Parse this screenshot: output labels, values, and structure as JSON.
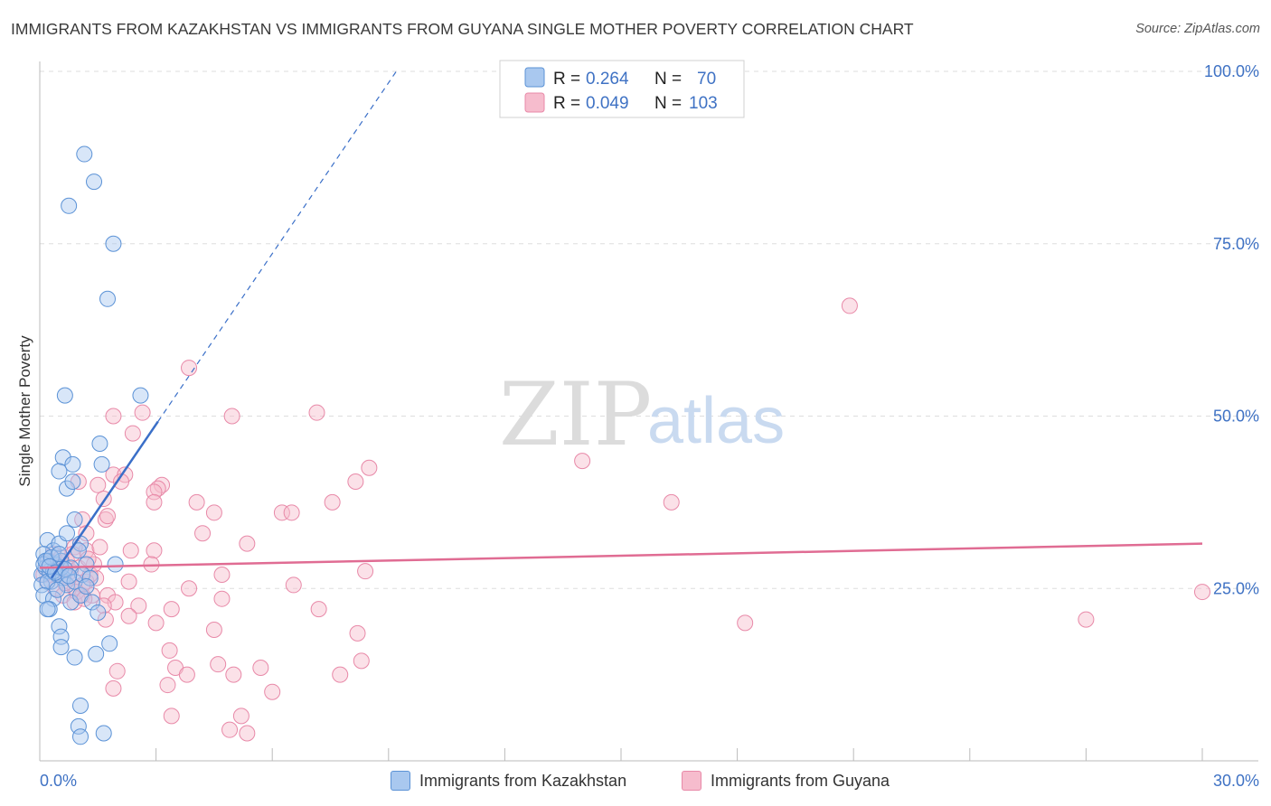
{
  "title": "IMMIGRANTS FROM KAZAKHSTAN VS IMMIGRANTS FROM GUYANA SINGLE MOTHER POVERTY CORRELATION CHART",
  "source": "Source: ZipAtlas.com",
  "watermark": {
    "zip": "ZIP",
    "atlas": "atlas"
  },
  "colors": {
    "blue_fill": "#a9c8ef",
    "blue_stroke": "#5b92d6",
    "blue_line": "#3a6fc8",
    "pink_fill": "#f6bccd",
    "pink_stroke": "#e889a8",
    "pink_line": "#e06c93",
    "tick_text": "#3f72c4"
  },
  "legend": {
    "rows": [
      {
        "r_label": "R =",
        "r_value": "0.264",
        "n_label": "N =",
        "n_value": "70"
      },
      {
        "r_label": "R =",
        "r_value": "0.049",
        "n_label": "N =",
        "n_value": "103"
      }
    ]
  },
  "bottom_legend": {
    "series1": "Immigrants from Kazakhstan",
    "series2": "Immigrants from Guyana"
  },
  "chart_data": {
    "type": "scatter",
    "title": "IMMIGRANTS FROM KAZAKHSTAN VS IMMIGRANTS FROM GUYANA SINGLE MOTHER POVERTY CORRELATION CHART",
    "xlabel": "",
    "ylabel": "Single Mother Poverty",
    "xlim": [
      0,
      30
    ],
    "ylim": [
      0,
      100
    ],
    "x_tick_labels": [
      "0.0%",
      "30.0%"
    ],
    "y_ticks": [
      25,
      50,
      75,
      100
    ],
    "y_tick_labels": [
      "25.0%",
      "50.0%",
      "75.0%",
      "100.0%"
    ],
    "grid": true,
    "legend_placement": "top-center",
    "series": [
      {
        "name": "Immigrants from Kazakhstan",
        "R": 0.264,
        "N": 70,
        "trend": {
          "x": [
            0.3,
            3.05
          ],
          "y": [
            26.5,
            49.2
          ],
          "dashed_to": [
            9.2,
            100
          ]
        },
        "points": [
          [
            1.15,
            88
          ],
          [
            1.4,
            84
          ],
          [
            0.75,
            80.5
          ],
          [
            1.9,
            75
          ],
          [
            1.75,
            67
          ],
          [
            0.65,
            53
          ],
          [
            2.6,
            53
          ],
          [
            1.55,
            46
          ],
          [
            0.6,
            44
          ],
          [
            0.85,
            43
          ],
          [
            1.6,
            43
          ],
          [
            0.5,
            42
          ],
          [
            0.7,
            39.5
          ],
          [
            0.85,
            40.5
          ],
          [
            0.2,
            32
          ],
          [
            0.35,
            30.5
          ],
          [
            0.5,
            31.5
          ],
          [
            0.1,
            30
          ],
          [
            0.9,
            35
          ],
          [
            0.7,
            33
          ],
          [
            1.05,
            31.5
          ],
          [
            0.2,
            29
          ],
          [
            0.4,
            28.5
          ],
          [
            0.55,
            29
          ],
          [
            0.8,
            28
          ],
          [
            1.0,
            30.5
          ],
          [
            1.2,
            28.5
          ],
          [
            1.95,
            28.5
          ],
          [
            0.05,
            27
          ],
          [
            0.15,
            28
          ],
          [
            0.25,
            27.5
          ],
          [
            0.3,
            26
          ],
          [
            0.45,
            27
          ],
          [
            0.6,
            26.5
          ],
          [
            0.7,
            25.5
          ],
          [
            0.9,
            26
          ],
          [
            1.1,
            27
          ],
          [
            1.3,
            26.5
          ],
          [
            0.05,
            25.5
          ],
          [
            0.2,
            26
          ],
          [
            0.1,
            28.5
          ],
          [
            0.35,
            27.5
          ],
          [
            0.55,
            28
          ],
          [
            0.15,
            29
          ],
          [
            0.3,
            29.5
          ],
          [
            0.5,
            30
          ],
          [
            0.25,
            28.2
          ],
          [
            0.4,
            27.3
          ],
          [
            0.65,
            27.8
          ],
          [
            0.1,
            24
          ],
          [
            0.35,
            23.5
          ],
          [
            0.8,
            23
          ],
          [
            1.05,
            24
          ],
          [
            1.35,
            23
          ],
          [
            0.25,
            22
          ],
          [
            1.5,
            21.5
          ],
          [
            0.5,
            19.5
          ],
          [
            0.55,
            18
          ],
          [
            0.55,
            16.5
          ],
          [
            0.9,
            15
          ],
          [
            1.8,
            17
          ],
          [
            1.45,
            15.5
          ],
          [
            1.05,
            8
          ],
          [
            1.0,
            5
          ],
          [
            1.05,
            3.5
          ],
          [
            1.65,
            4
          ],
          [
            0.2,
            22
          ],
          [
            0.75,
            26.8
          ],
          [
            1.2,
            25.3
          ],
          [
            0.45,
            24.8
          ]
        ]
      },
      {
        "name": "Immigrants from Guyana",
        "R": 0.049,
        "N": 103,
        "trend": {
          "x": [
            0,
            30
          ],
          "y": [
            28,
            31.5
          ]
        },
        "points": [
          [
            20.9,
            66
          ],
          [
            3.85,
            57
          ],
          [
            4.96,
            50
          ],
          [
            7.15,
            50.5
          ],
          [
            1.9,
            50
          ],
          [
            2.65,
            50.5
          ],
          [
            14.0,
            43.5
          ],
          [
            2.4,
            47.5
          ],
          [
            8.5,
            42.5
          ],
          [
            1.9,
            41.5
          ],
          [
            2.2,
            41.5
          ],
          [
            1.0,
            40.5
          ],
          [
            1.5,
            40
          ],
          [
            2.1,
            40.5
          ],
          [
            3.15,
            40
          ],
          [
            3.05,
            39.5
          ],
          [
            2.95,
            39
          ],
          [
            8.15,
            40.5
          ],
          [
            1.65,
            38
          ],
          [
            2.95,
            37.5
          ],
          [
            4.05,
            37.5
          ],
          [
            16.3,
            37.5
          ],
          [
            7.55,
            37.5
          ],
          [
            6.25,
            36
          ],
          [
            6.5,
            36
          ],
          [
            4.5,
            36
          ],
          [
            1.1,
            35
          ],
          [
            1.7,
            35
          ],
          [
            1.75,
            35.5
          ],
          [
            4.2,
            33
          ],
          [
            1.2,
            33
          ],
          [
            5.35,
            31.5
          ],
          [
            2.35,
            30.5
          ],
          [
            2.95,
            30.5
          ],
          [
            1.2,
            30.5
          ],
          [
            1.55,
            31
          ],
          [
            0.9,
            31
          ],
          [
            2.88,
            28.5
          ],
          [
            8.4,
            27.5
          ],
          [
            4.7,
            27
          ],
          [
            1.45,
            26.5
          ],
          [
            2.3,
            26
          ],
          [
            6.55,
            25.5
          ],
          [
            3.85,
            25
          ],
          [
            0.9,
            25
          ],
          [
            1.1,
            24
          ],
          [
            1.35,
            24
          ],
          [
            1.75,
            24
          ],
          [
            1.95,
            23
          ],
          [
            4.7,
            23.5
          ],
          [
            2.55,
            22.5
          ],
          [
            3.4,
            22
          ],
          [
            7.2,
            22
          ],
          [
            1.65,
            22.5
          ],
          [
            2.3,
            21
          ],
          [
            3.0,
            20
          ],
          [
            1.7,
            20.5
          ],
          [
            18.2,
            20
          ],
          [
            27.0,
            20.5
          ],
          [
            4.5,
            19
          ],
          [
            8.2,
            18.5
          ],
          [
            3.35,
            16
          ],
          [
            2.0,
            13
          ],
          [
            4.6,
            14
          ],
          [
            5.7,
            13.5
          ],
          [
            3.5,
            13.5
          ],
          [
            3.8,
            12.5
          ],
          [
            5.0,
            12.5
          ],
          [
            7.75,
            12.5
          ],
          [
            8.3,
            14.5
          ],
          [
            1.9,
            10.5
          ],
          [
            3.3,
            11
          ],
          [
            6.0,
            10
          ],
          [
            3.4,
            6.5
          ],
          [
            5.2,
            6.5
          ],
          [
            4.9,
            4.5
          ],
          [
            5.35,
            4
          ],
          [
            30.0,
            24.5
          ],
          [
            0.3,
            27
          ],
          [
            0.5,
            28.5
          ],
          [
            0.7,
            29
          ],
          [
            0.2,
            26
          ],
          [
            0.8,
            27.5
          ],
          [
            1.0,
            28
          ],
          [
            0.4,
            25
          ],
          [
            1.2,
            26
          ],
          [
            0.6,
            24
          ],
          [
            0.35,
            30
          ],
          [
            1.3,
            27
          ],
          [
            0.9,
            23
          ],
          [
            0.15,
            28
          ],
          [
            0.55,
            29.5
          ],
          [
            1.1,
            25.5
          ],
          [
            0.75,
            26.5
          ],
          [
            1.4,
            28.5
          ],
          [
            0.25,
            29
          ],
          [
            0.95,
            24.5
          ],
          [
            0.45,
            27.5
          ],
          [
            0.65,
            25.8
          ],
          [
            1.25,
            29.3
          ],
          [
            0.85,
            30
          ],
          [
            0.1,
            27
          ],
          [
            1.15,
            23.5
          ]
        ]
      }
    ]
  }
}
